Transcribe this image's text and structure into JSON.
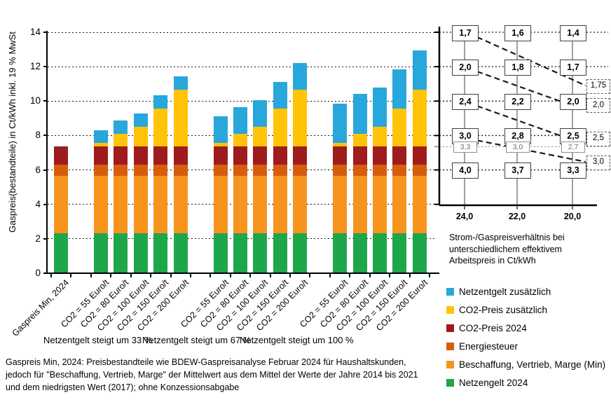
{
  "chart_data": {
    "type": "bar",
    "stacked": true,
    "ylabel": "Gaspreis(bestandteile) in Ct/kWh inkl. 19 % MwSt",
    "ylim": [
      0,
      14
    ],
    "ytick_step": 2,
    "grid": true,
    "segments": [
      {
        "name": "Netzengelt 2024",
        "color": "#1EA64B"
      },
      {
        "name": "Beschaffung, Vertrieb, Marge (Min)",
        "color": "#F7941E"
      },
      {
        "name": "Energiesteuer",
        "color": "#D75D0D"
      },
      {
        "name": "CO2-Preis 2024",
        "color": "#9E1B1E"
      },
      {
        "name": "CO2-Preis zusätzlich",
        "color": "#FFC408"
      },
      {
        "name": "Netzentgelt zusätzlich",
        "color": "#27A7DC"
      }
    ],
    "groups": [
      {
        "label": "",
        "bars": [
          {
            "label": "Gaspreis Min, 2024",
            "values": [
              2.3,
              3.35,
              0.65,
              1.05,
              0,
              0
            ]
          }
        ]
      },
      {
        "label": "Netzentgelt steigt um 33 %",
        "bars": [
          {
            "label": "CO2 = 55 Euro/t",
            "values": [
              2.3,
              3.35,
              0.65,
              1.05,
              0.2,
              0.77
            ]
          },
          {
            "label": "CO2 = 80 Euro/t",
            "values": [
              2.3,
              3.35,
              0.65,
              1.05,
              0.75,
              0.77
            ]
          },
          {
            "label": "CO2 = 100 Euro/t",
            "values": [
              2.3,
              3.35,
              0.65,
              1.05,
              1.15,
              0.77
            ]
          },
          {
            "label": "CO2 = 150 Euro/t",
            "values": [
              2.3,
              3.35,
              0.65,
              1.05,
              2.2,
              0.77
            ]
          },
          {
            "label": "CO2 = 200 Euro/t",
            "values": [
              2.3,
              3.35,
              0.65,
              1.05,
              3.3,
              0.77
            ]
          }
        ]
      },
      {
        "label": "Netzentgelt steigt um 67 %",
        "bars": [
          {
            "label": "CO2 = 55 Euro/t",
            "values": [
              2.3,
              3.35,
              0.65,
              1.05,
              0.2,
              1.55
            ]
          },
          {
            "label": "CO2 = 80 Euro/t",
            "values": [
              2.3,
              3.35,
              0.65,
              1.05,
              0.75,
              1.55
            ]
          },
          {
            "label": "CO2 = 100 Euro/t",
            "values": [
              2.3,
              3.35,
              0.65,
              1.05,
              1.15,
              1.55
            ]
          },
          {
            "label": "CO2 = 150 Euro/t",
            "values": [
              2.3,
              3.35,
              0.65,
              1.05,
              2.2,
              1.55
            ]
          },
          {
            "label": "CO2 = 200 Euro/t",
            "values": [
              2.3,
              3.35,
              0.65,
              1.05,
              3.3,
              1.55
            ]
          }
        ]
      },
      {
        "label": "Netzentgelt steigt um 100 %",
        "bars": [
          {
            "label": "CO2 = 55 Euro/t",
            "values": [
              2.3,
              3.35,
              0.65,
              1.05,
              0.2,
              2.3
            ]
          },
          {
            "label": "CO2 = 80 Euro/t",
            "values": [
              2.3,
              3.35,
              0.65,
              1.05,
              0.75,
              2.3
            ]
          },
          {
            "label": "CO2 = 100 Euro/t",
            "values": [
              2.3,
              3.35,
              0.65,
              1.05,
              1.15,
              2.3
            ]
          },
          {
            "label": "CO2 = 150 Euro/t",
            "values": [
              2.3,
              3.35,
              0.65,
              1.05,
              2.2,
              2.3
            ]
          },
          {
            "label": "CO2 = 200 Euro/t",
            "values": [
              2.3,
              3.35,
              0.65,
              1.05,
              3.3,
              2.3
            ]
          }
        ]
      }
    ]
  },
  "ratio_diagram": {
    "columns": [
      "24,0",
      "22,0",
      "20,0"
    ],
    "rows": [
      {
        "at": 14,
        "cells": [
          "1,7",
          "1,6",
          "1,4"
        ],
        "minor": false
      },
      {
        "at": 12,
        "cells": [
          "2,0",
          "1,8",
          "1,7"
        ],
        "minor": false
      },
      {
        "at": 10,
        "cells": [
          "2,4",
          "2,2",
          "2,0"
        ],
        "minor": false
      },
      {
        "at": 8,
        "cells": [
          "3,0",
          "2,8",
          "2,5"
        ],
        "minor": false
      },
      {
        "at": 7.35,
        "cells": [
          "3,3",
          "3,0",
          "2,7"
        ],
        "minor": true
      },
      {
        "at": 6,
        "cells": [
          "4,0",
          "3,7",
          "3,3"
        ],
        "minor": false
      }
    ],
    "callouts": [
      {
        "label": "1,75",
        "at": 10.9
      },
      {
        "label": "2,0",
        "at": 9.77
      },
      {
        "label": "2,5",
        "at": 7.85
      },
      {
        "label": "3,0",
        "at": 6.47
      }
    ],
    "caption": "Strom-/Gaspreisverhältnis bei unterschiedlichem effektivem Arbeitspreis in Ct/kWh"
  },
  "legend": [
    {
      "label": "Netzentgelt zusätzlich",
      "color": "#27A7DC"
    },
    {
      "label": "CO2-Preis zusätzlich",
      "color": "#FFC408"
    },
    {
      "label": "CO2-Preis 2024",
      "color": "#9E1B1E"
    },
    {
      "label": "Energiesteuer",
      "color": "#D75D0D"
    },
    {
      "label": "Beschaffung, Vertrieb, Marge (Min)",
      "color": "#F7941E"
    },
    {
      "label": "Netzengelt 2024",
      "color": "#1EA64B"
    }
  ],
  "footnote": "Gaspreis Min, 2024: Preisbestandteile wie BDEW-Gaspreisanalyse Februar 2024 für Haushaltskunden, jedoch für \"Beschaffung, Vertrieb, Marge\" der Mittelwert aus dem Mittel der Werte der Jahre 2014 bis 2021 und dem niedrigsten Wert (2017); ohne Konzessionsabgabe"
}
